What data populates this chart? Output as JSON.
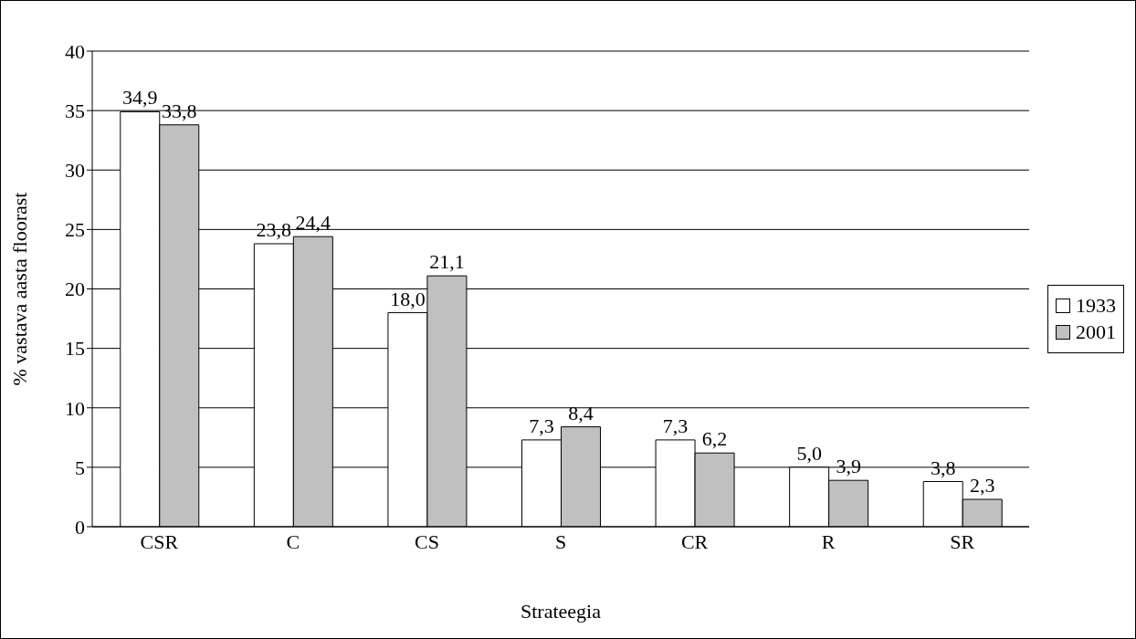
{
  "chart_data": {
    "type": "bar",
    "xlabel": "Strateegia",
    "ylabel": "% vastava aasta floorast",
    "categories": [
      "CSR",
      "C",
      "CS",
      "S",
      "CR",
      "R",
      "SR"
    ],
    "series": [
      {
        "name": "1933",
        "color": "#ffffff",
        "values": [
          34.9,
          23.8,
          18.0,
          7.3,
          7.3,
          5.0,
          3.8
        ],
        "value_labels": [
          "34,9",
          "23,8",
          "18,0",
          "7,3",
          "7,3",
          "5,0",
          "3,8"
        ]
      },
      {
        "name": "2001",
        "color": "#c0c0c0",
        "values": [
          33.8,
          24.4,
          21.1,
          8.4,
          6.2,
          3.9,
          2.3
        ],
        "value_labels": [
          "33,8",
          "24,4",
          "21,1",
          "8,4",
          "6,2",
          "3,9",
          "2,3"
        ]
      }
    ],
    "ylim": [
      0,
      40
    ],
    "yticks": [
      0,
      5,
      10,
      15,
      20,
      25,
      30,
      35,
      40
    ],
    "grid": "y",
    "legend": "right"
  }
}
